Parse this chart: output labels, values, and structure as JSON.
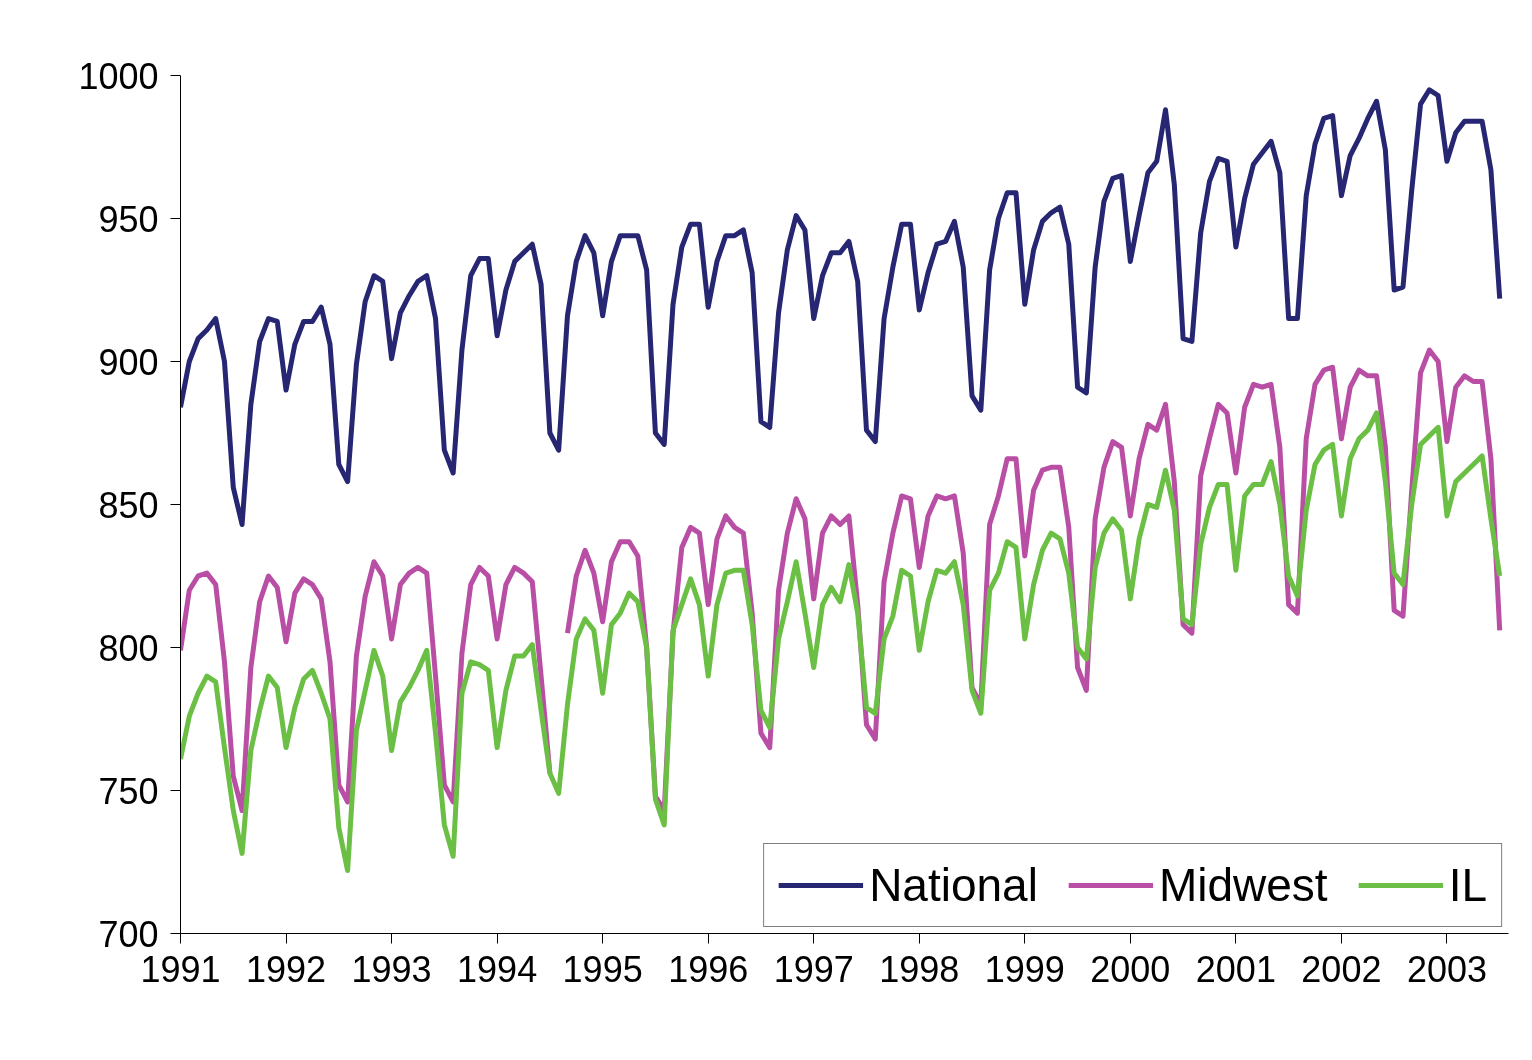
{
  "chart_data": {
    "type": "line",
    "categories": [
      "1991",
      null,
      null,
      null,
      null,
      null,
      null,
      null,
      null,
      null,
      null,
      null,
      "1992",
      null,
      null,
      null,
      null,
      null,
      null,
      null,
      null,
      null,
      null,
      null,
      "1993",
      null,
      null,
      null,
      null,
      null,
      null,
      null,
      null,
      null,
      null,
      null,
      "1994",
      null,
      null,
      null,
      null,
      null,
      null,
      null,
      null,
      null,
      null,
      null,
      "1995",
      null,
      null,
      null,
      null,
      null,
      null,
      null,
      null,
      null,
      null,
      null,
      "1996",
      null,
      null,
      null,
      null,
      null,
      null,
      null,
      null,
      null,
      null,
      null,
      "1997",
      null,
      null,
      null,
      null,
      null,
      null,
      null,
      null,
      null,
      null,
      null,
      "1998",
      null,
      null,
      null,
      null,
      null,
      null,
      null,
      null,
      null,
      null,
      null,
      "1999",
      null,
      null,
      null,
      null,
      null,
      null,
      null,
      null,
      null,
      null,
      null,
      "2000",
      null,
      null,
      null,
      null,
      null,
      null,
      null,
      null,
      null,
      null,
      null,
      "2001",
      null,
      null,
      null,
      null,
      null,
      null,
      null,
      null,
      null,
      null,
      null,
      "2002",
      null,
      null,
      null,
      null,
      null,
      null,
      null,
      null,
      null,
      null,
      null,
      "2003",
      null,
      null,
      null,
      null,
      null,
      null
    ],
    "ylim": [
      700,
      1000
    ],
    "yticks": [
      700,
      750,
      800,
      850,
      900,
      950,
      1000
    ],
    "grid": false,
    "legend": "bottom right",
    "marker": "none",
    "line_style": "solid",
    "series": [
      {
        "name": "National",
        "color": "#262673",
        "values": [
          884,
          900,
          908,
          911,
          915,
          900,
          856,
          843,
          885,
          907,
          915,
          914,
          890,
          906,
          914,
          914,
          919,
          906,
          864,
          858,
          899,
          921,
          930,
          928,
          901,
          917,
          923,
          928,
          930,
          915,
          869,
          861,
          904,
          930,
          936,
          936,
          909,
          925,
          935,
          938,
          941,
          927,
          875,
          869,
          916,
          935,
          944,
          938,
          916,
          935,
          944,
          944,
          944,
          932,
          875,
          871,
          920,
          940,
          948,
          948,
          919,
          935,
          944,
          944,
          946,
          931,
          879,
          877,
          917,
          939,
          951,
          946,
          915,
          930,
          938,
          938,
          942,
          928,
          876,
          872,
          915,
          933,
          948,
          948,
          918,
          931,
          941,
          942,
          949,
          933,
          888,
          883,
          932,
          950,
          959,
          959,
          920,
          939,
          949,
          952,
          954,
          941,
          891,
          889,
          933,
          956,
          964,
          965,
          935,
          951,
          966,
          970,
          988,
          962,
          908,
          907,
          945,
          963,
          971,
          970,
          940,
          957,
          969,
          973,
          977,
          966,
          915,
          915,
          958,
          976,
          985,
          986,
          958,
          972,
          978,
          985,
          991,
          974,
          925,
          926,
          960,
          990,
          995,
          993,
          970,
          980,
          984,
          984,
          984,
          967,
          922
        ]
      },
      {
        "name": "Midwest",
        "color": "#b94fa4",
        "values": [
          799,
          820,
          825,
          826,
          822,
          795,
          755,
          743,
          793,
          816,
          825,
          821,
          802,
          819,
          824,
          822,
          817,
          795,
          752,
          746,
          797,
          818,
          830,
          825,
          803,
          822,
          826,
          828,
          826,
          790,
          752,
          746,
          798,
          822,
          828,
          825,
          803,
          822,
          828,
          826,
          823,
          790,
          756,
          null,
          805,
          825,
          834,
          826,
          809,
          830,
          837,
          837,
          832,
          800,
          748,
          743,
          805,
          835,
          842,
          840,
          815,
          838,
          846,
          842,
          840,
          812,
          770,
          765,
          820,
          840,
          852,
          845,
          817,
          840,
          846,
          843,
          846,
          815,
          773,
          768,
          823,
          840,
          853,
          852,
          828,
          846,
          853,
          852,
          853,
          833,
          786,
          780,
          843,
          853,
          866,
          866,
          832,
          855,
          862,
          863,
          863,
          842,
          793,
          785,
          845,
          863,
          872,
          870,
          846,
          866,
          878,
          876,
          885,
          858,
          808,
          805,
          860,
          873,
          885,
          882,
          861,
          884,
          892,
          891,
          892,
          870,
          815,
          812,
          873,
          892,
          897,
          898,
          873,
          891,
          897,
          895,
          895,
          870,
          813,
          811,
          855,
          896,
          904,
          900,
          872,
          891,
          895,
          893,
          893,
          866,
          806
        ]
      },
      {
        "name": "IL",
        "color": "#6cbf45",
        "values": [
          761,
          776,
          784,
          790,
          788,
          765,
          743,
          728,
          764,
          778,
          790,
          786,
          765,
          779,
          789,
          792,
          784,
          775,
          737,
          722,
          771,
          785,
          799,
          790,
          764,
          781,
          786,
          792,
          799,
          770,
          738,
          727,
          784,
          795,
          794,
          792,
          765,
          785,
          797,
          797,
          801,
          778,
          756,
          749,
          780,
          803,
          810,
          806,
          784,
          808,
          812,
          819,
          816,
          800,
          747,
          738,
          806,
          815,
          824,
          815,
          790,
          815,
          826,
          827,
          827,
          808,
          778,
          772,
          803,
          816,
          830,
          812,
          793,
          815,
          821,
          816,
          829,
          812,
          779,
          777,
          803,
          811,
          827,
          825,
          799,
          816,
          827,
          826,
          830,
          815,
          785,
          777,
          820,
          826,
          837,
          835,
          803,
          822,
          834,
          840,
          838,
          826,
          800,
          796,
          828,
          840,
          845,
          841,
          817,
          838,
          850,
          849,
          862,
          848,
          810,
          808,
          836,
          849,
          857,
          857,
          827,
          853,
          857,
          857,
          865,
          850,
          825,
          818,
          848,
          864,
          869,
          871,
          846,
          866,
          873,
          876,
          882,
          858,
          826,
          822,
          850,
          871,
          874,
          877,
          846,
          858,
          861,
          864,
          867,
          845,
          825
        ]
      }
    ]
  }
}
